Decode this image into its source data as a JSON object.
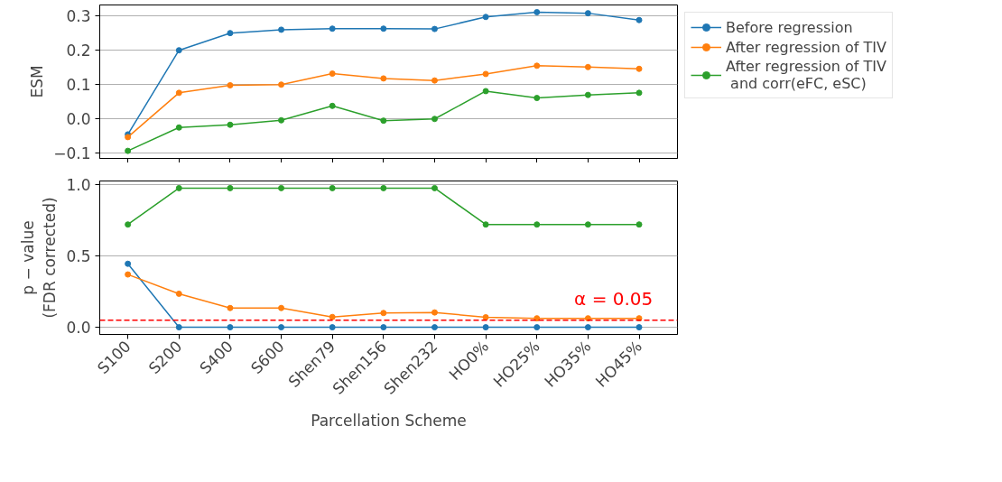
{
  "chart_data": [
    {
      "type": "line",
      "ylabel": "ESM",
      "categories": [
        null,
        null,
        null,
        null,
        null,
        null,
        null,
        null,
        null,
        null,
        null
      ],
      "ylim": [
        -0.115,
        0.332
      ],
      "yticks": [
        {
          "value": -0.1,
          "label": "−0.1"
        },
        {
          "value": 0.0,
          "label": "0.0"
        },
        {
          "value": 0.1,
          "label": "0.1"
        },
        {
          "value": 0.2,
          "label": "0.2"
        },
        {
          "value": 0.3,
          "label": "0.3"
        }
      ],
      "grid": "y",
      "marker": "circle",
      "legend": "right",
      "tick_labels": "y",
      "series": [
        {
          "name": "Before regression",
          "color": "#1f77b4",
          "values": [
            -0.045,
            0.2,
            0.25,
            0.26,
            0.263,
            0.263,
            0.262,
            0.297,
            0.311,
            0.308,
            0.288
          ]
        },
        {
          "name": "After regression of TIV",
          "color": "#ff7f0e",
          "values": [
            -0.053,
            0.076,
            0.098,
            0.1,
            0.132,
            0.118,
            0.112,
            0.131,
            0.155,
            0.151,
            0.146
          ]
        },
        {
          "name": "After regression of TIV\n and corr(eFC, eSC)",
          "color": "#2ca02c",
          "values": [
            -0.093,
            -0.025,
            -0.017,
            -0.004,
            0.038,
            -0.005,
            0.0,
            0.081,
            0.061,
            0.07,
            0.076
          ]
        }
      ]
    },
    {
      "type": "line",
      "ylabel": "p − value\n(FDR corrected)",
      "xlabel": "Parcellation Scheme",
      "categories": [
        "S100",
        "S200",
        "S400",
        "S600",
        "Shen79",
        "Shen156",
        "Shen232",
        "HO0%",
        "HO25%",
        "HO35%",
        "HO45%"
      ],
      "ylim": [
        -0.05,
        1.025
      ],
      "yticks": [
        {
          "value": 0.0,
          "label": "0.0"
        },
        {
          "value": 0.5,
          "label": "0.5"
        },
        {
          "value": 1.0,
          "label": "1.0"
        }
      ],
      "grid": "y",
      "marker": "circle",
      "ref_lines": [
        {
          "axis": "y",
          "value": 0.05,
          "label": "α = 0.05",
          "color": "#ff0000",
          "line_style": "dashed"
        }
      ],
      "series": [
        {
          "color": "#1f77b4",
          "values": [
            0.445,
            0,
            0,
            0,
            0,
            0,
            0,
            0,
            0,
            0,
            0
          ]
        },
        {
          "color": "#ff7f0e",
          "values": [
            0.37,
            0.235,
            0.135,
            0.135,
            0.072,
            0.1,
            0.104,
            0.07,
            0.063,
            0.063,
            0.063
          ]
        },
        {
          "color": "#2ca02c",
          "values": [
            0.72,
            0.975,
            0.975,
            0.975,
            0.975,
            0.975,
            0.975,
            0.72,
            0.72,
            0.72,
            0.72
          ]
        }
      ]
    }
  ]
}
